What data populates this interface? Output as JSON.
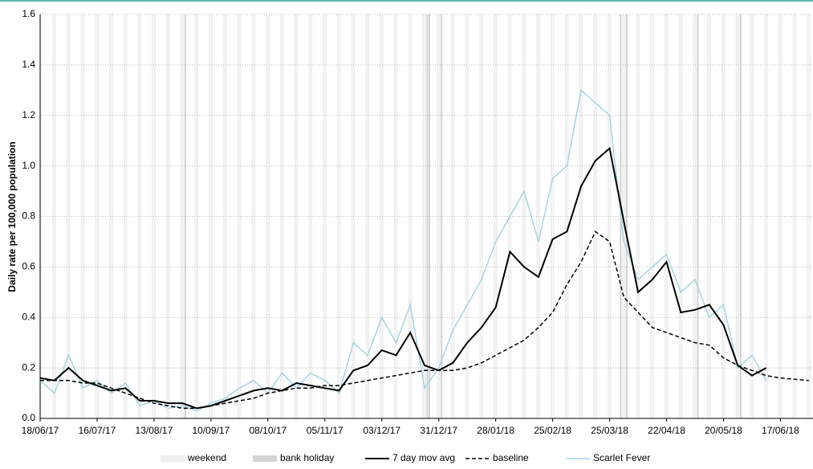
{
  "chart_data": {
    "type": "line",
    "y_label": "Daily rate per 100,000 population",
    "xlim": [
      "18/06/17",
      "03/07/18"
    ],
    "xticks": [
      "18/06/17",
      "16/07/17",
      "13/08/17",
      "10/09/17",
      "08/10/17",
      "05/11/17",
      "03/12/17",
      "31/12/17",
      "28/01/18",
      "25/02/18",
      "25/03/18",
      "22/04/18",
      "20/05/18",
      "17/06/18"
    ],
    "ylim": [
      0,
      1.6
    ],
    "yticks": [
      {
        "value": 0,
        "label": "0.0"
      },
      {
        "value": 0.2,
        "label": "0.2"
      },
      {
        "value": 0.4,
        "label": "0.4"
      },
      {
        "value": 0.6,
        "label": "0.6"
      },
      {
        "value": 0.8,
        "label": "0.8"
      },
      {
        "value": 1,
        "label": "1.0"
      },
      {
        "value": 1.2,
        "label": "1.2"
      },
      {
        "value": 1.4,
        "label": "1.4"
      },
      {
        "value": 1.6,
        "label": "1.6"
      }
    ],
    "grid": true,
    "weekend_label": "weekend",
    "weekend_color": "#efefef",
    "bank_holiday_label": "bank holiday",
    "bank_holiday_color": "#d4d4d4",
    "bank_holidays": [
      "28/08/17",
      "25/12/17",
      "26/12/17",
      "01/01/18",
      "30/03/18",
      "02/04/18",
      "07/05/18",
      "28/05/18"
    ],
    "x": [
      "18/06/17",
      "25/06/17",
      "02/07/17",
      "09/07/17",
      "16/07/17",
      "23/07/17",
      "30/07/17",
      "06/08/17",
      "13/08/17",
      "20/08/17",
      "27/08/17",
      "03/09/17",
      "10/09/17",
      "17/09/17",
      "24/09/17",
      "01/10/17",
      "08/10/17",
      "15/10/17",
      "22/10/17",
      "29/10/17",
      "05/11/17",
      "12/11/17",
      "19/11/17",
      "26/11/17",
      "03/12/17",
      "10/12/17",
      "17/12/17",
      "24/12/17",
      "31/12/17",
      "07/01/18",
      "14/01/18",
      "21/01/18",
      "28/01/18",
      "04/02/18",
      "11/02/18",
      "18/02/18",
      "25/02/18",
      "04/03/18",
      "11/03/18",
      "18/03/18",
      "25/03/18",
      "01/04/18",
      "08/04/18",
      "15/04/18",
      "22/04/18",
      "29/04/18",
      "06/05/18",
      "13/05/18",
      "20/05/18",
      "27/05/18",
      "03/06/18",
      "10/06/18",
      "17/06/18",
      "24/06/18",
      "01/07/18"
    ],
    "series": [
      {
        "name": "Scarlet Fever",
        "color": "#a8d4e0",
        "width": 1.5,
        "dash": false,
        "values": [
          0.15,
          0.1,
          0.25,
          0.12,
          0.15,
          0.1,
          0.14,
          0.05,
          0.07,
          0.04,
          0.05,
          0.03,
          0.06,
          0.08,
          0.12,
          0.15,
          0.1,
          0.18,
          0.12,
          0.18,
          0.15,
          0.1,
          0.3,
          0.25,
          0.4,
          0.3,
          0.45,
          0.12,
          0.2,
          0.35,
          0.45,
          0.55,
          0.7,
          0.8,
          0.9,
          0.7,
          0.95,
          1.0,
          1.3,
          1.25,
          1.2,
          0.7,
          0.55,
          0.6,
          0.65,
          0.5,
          0.55,
          0.4,
          0.45,
          0.2,
          0.25,
          0.15,
          null,
          null,
          null
        ]
      },
      {
        "name": "7 day mov avg",
        "color": "#000000",
        "width": 2,
        "dash": false,
        "values": [
          0.16,
          0.15,
          0.2,
          0.15,
          0.13,
          0.11,
          0.12,
          0.07,
          0.07,
          0.06,
          0.06,
          0.04,
          0.05,
          0.07,
          0.09,
          0.11,
          0.12,
          0.11,
          0.14,
          0.13,
          0.12,
          0.11,
          0.19,
          0.21,
          0.27,
          0.25,
          0.34,
          0.21,
          0.19,
          0.22,
          0.3,
          0.36,
          0.44,
          0.66,
          0.6,
          0.56,
          0.71,
          0.74,
          0.92,
          1.02,
          1.07,
          0.78,
          0.5,
          0.55,
          0.62,
          0.42,
          0.43,
          0.45,
          0.37,
          0.21,
          0.17,
          0.2,
          null,
          null,
          null
        ]
      },
      {
        "name": "baseline",
        "color": "#000000",
        "width": 1.5,
        "dash": true,
        "values": [
          0.15,
          0.15,
          0.15,
          0.14,
          0.14,
          0.12,
          0.1,
          0.08,
          0.06,
          0.05,
          0.04,
          0.04,
          0.05,
          0.06,
          0.07,
          0.08,
          0.1,
          0.11,
          0.12,
          0.12,
          0.13,
          0.13,
          0.14,
          0.15,
          0.16,
          0.17,
          0.18,
          0.19,
          0.19,
          0.19,
          0.2,
          0.22,
          0.25,
          0.28,
          0.31,
          0.36,
          0.42,
          0.53,
          0.62,
          0.74,
          0.7,
          0.48,
          0.42,
          0.36,
          0.34,
          0.32,
          0.3,
          0.29,
          0.24,
          0.21,
          0.19,
          0.17,
          0.16,
          0.155,
          0.15
        ]
      }
    ]
  }
}
